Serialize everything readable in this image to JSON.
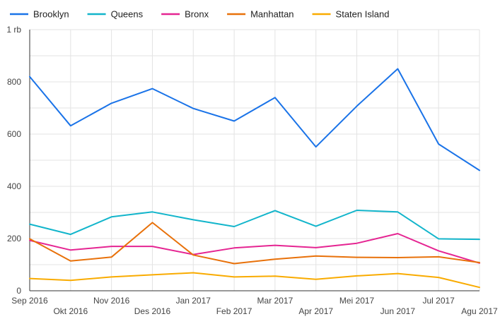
{
  "chart_data": {
    "type": "line",
    "title": "",
    "xlabel": "",
    "ylabel": "",
    "ylim": [
      0,
      1000
    ],
    "grid": true,
    "legend_position": "top-left",
    "y_ticks": [
      {
        "value": 0,
        "label": "0"
      },
      {
        "value": 200,
        "label": "200"
      },
      {
        "value": 400,
        "label": "400"
      },
      {
        "value": 600,
        "label": "600"
      },
      {
        "value": 800,
        "label": "800"
      },
      {
        "value": 1000,
        "label": "1 rb"
      }
    ],
    "categories": [
      "Sep 2016",
      "Okt 2016",
      "Nov 2016",
      "Des 2016",
      "Jan 2017",
      "Feb 2017",
      "Mar 2017",
      "Apr 2017",
      "Mei 2017",
      "Jun 2017",
      "Jul 2017",
      "Agu 2017"
    ],
    "series": [
      {
        "name": "Brooklyn",
        "color": "#1a73e8",
        "values": [
          820,
          632,
          718,
          774,
          698,
          650,
          740,
          551,
          707,
          850,
          562,
          461
        ]
      },
      {
        "name": "Queens",
        "color": "#12b5cb",
        "values": [
          255,
          216,
          283,
          302,
          272,
          246,
          307,
          247,
          308,
          302,
          199,
          197
        ]
      },
      {
        "name": "Bronx",
        "color": "#e52592",
        "values": [
          193,
          156,
          170,
          170,
          139,
          164,
          174,
          165,
          182,
          219,
          153,
          106
        ]
      },
      {
        "name": "Manhattan",
        "color": "#e8710a",
        "values": [
          199,
          114,
          129,
          261,
          137,
          104,
          121,
          133,
          128,
          127,
          130,
          108
        ]
      },
      {
        "name": "Staten Island",
        "color": "#f9ab00",
        "values": [
          47,
          40,
          53,
          61,
          69,
          53,
          56,
          44,
          57,
          66,
          51,
          13
        ]
      }
    ]
  }
}
